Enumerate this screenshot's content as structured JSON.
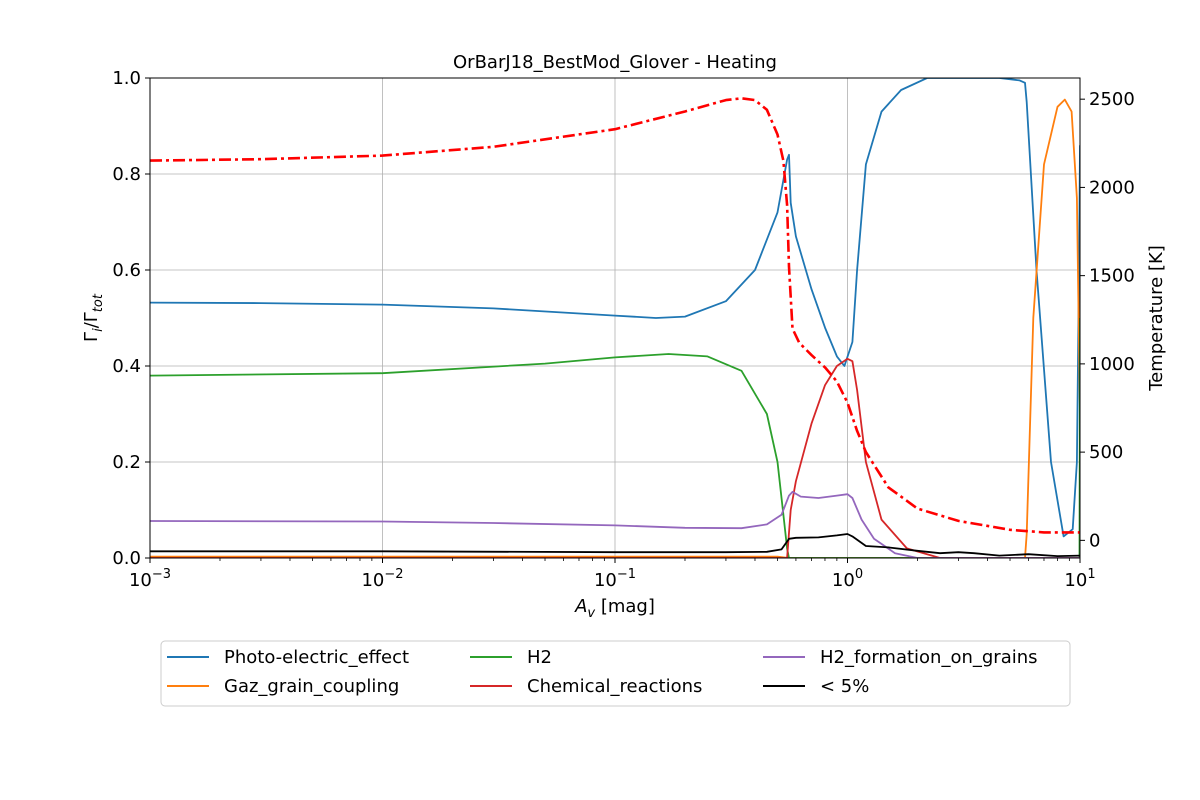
{
  "chart_data": {
    "type": "line",
    "title": "OrBarJ18_BestMod_Glover - Heating",
    "xlabel": "A",
    "xlabel_sub": "v",
    "xlabel_unit": " [mag]",
    "ylabel": "Γ",
    "ylabel_sub1": "i",
    "ylabel_mid": "/Γ",
    "ylabel_sub2": "tot",
    "y2label": "Temperature [K]",
    "xscale": "log",
    "xlim": [
      0.001,
      10
    ],
    "ylim": [
      0,
      1
    ],
    "y2lim": [
      -100,
      2620
    ],
    "grid": true,
    "legend_position": "below",
    "xticks": [
      {
        "value": 0.001,
        "base": "10",
        "exp": "−3"
      },
      {
        "value": 0.01,
        "base": "10",
        "exp": "−2"
      },
      {
        "value": 0.1,
        "base": "10",
        "exp": "−1"
      },
      {
        "value": 1,
        "base": "10",
        "exp": "0"
      },
      {
        "value": 10,
        "base": "10",
        "exp": "1"
      }
    ],
    "yticks": [
      {
        "value": 0.0,
        "label": "0.0"
      },
      {
        "value": 0.2,
        "label": "0.2"
      },
      {
        "value": 0.4,
        "label": "0.4"
      },
      {
        "value": 0.6,
        "label": "0.6"
      },
      {
        "value": 0.8,
        "label": "0.8"
      },
      {
        "value": 1.0,
        "label": "1.0"
      }
    ],
    "y2ticks": [
      {
        "value": 0,
        "label": "0"
      },
      {
        "value": 500,
        "label": "500"
      },
      {
        "value": 1000,
        "label": "1000"
      },
      {
        "value": 1500,
        "label": "1500"
      },
      {
        "value": 2000,
        "label": "2000"
      },
      {
        "value": 2500,
        "label": "2500"
      }
    ],
    "series": [
      {
        "name": "Photo-electric_effect",
        "color": "#1f77b4",
        "points": [
          [
            0.001,
            0.532
          ],
          [
            0.003,
            0.531
          ],
          [
            0.01,
            0.528
          ],
          [
            0.03,
            0.52
          ],
          [
            0.1,
            0.505
          ],
          [
            0.15,
            0.5
          ],
          [
            0.2,
            0.503
          ],
          [
            0.3,
            0.535
          ],
          [
            0.4,
            0.6
          ],
          [
            0.5,
            0.72
          ],
          [
            0.55,
            0.83
          ],
          [
            0.56,
            0.84
          ],
          [
            0.57,
            0.74
          ],
          [
            0.6,
            0.67
          ],
          [
            0.7,
            0.56
          ],
          [
            0.8,
            0.48
          ],
          [
            0.9,
            0.42
          ],
          [
            0.97,
            0.4
          ],
          [
            1.05,
            0.45
          ],
          [
            1.1,
            0.6
          ],
          [
            1.2,
            0.82
          ],
          [
            1.4,
            0.93
          ],
          [
            1.7,
            0.975
          ],
          [
            2.2,
            1.0
          ],
          [
            3,
            1.0
          ],
          [
            4.5,
            1.0
          ],
          [
            5.5,
            0.995
          ],
          [
            5.8,
            0.99
          ],
          [
            5.9,
            0.95
          ],
          [
            6.5,
            0.6
          ],
          [
            7.5,
            0.2
          ],
          [
            8.5,
            0.045
          ],
          [
            9.3,
            0.06
          ],
          [
            9.7,
            0.2
          ],
          [
            9.9,
            0.6
          ],
          [
            10,
            0.86
          ]
        ]
      },
      {
        "name": "Gaz_grain_coupling",
        "color": "#ff7f0e",
        "points": [
          [
            0.001,
            0.003
          ],
          [
            0.5,
            0.003
          ],
          [
            0.56,
            0.0
          ],
          [
            5.8,
            0.0
          ],
          [
            5.9,
            0.05
          ],
          [
            6.3,
            0.5
          ],
          [
            7.0,
            0.82
          ],
          [
            8.0,
            0.94
          ],
          [
            8.6,
            0.955
          ],
          [
            9.2,
            0.93
          ],
          [
            9.7,
            0.75
          ],
          [
            10,
            0.3
          ]
        ]
      },
      {
        "name": "H2",
        "color": "#2ca02c",
        "points": [
          [
            0.001,
            0.38
          ],
          [
            0.01,
            0.385
          ],
          [
            0.05,
            0.405
          ],
          [
            0.1,
            0.418
          ],
          [
            0.17,
            0.425
          ],
          [
            0.25,
            0.42
          ],
          [
            0.35,
            0.39
          ],
          [
            0.45,
            0.3
          ],
          [
            0.5,
            0.2
          ],
          [
            0.53,
            0.09
          ],
          [
            0.55,
            0.02
          ],
          [
            0.56,
            0.0
          ],
          [
            9.95,
            0.0
          ],
          [
            10,
            0.5
          ]
        ]
      },
      {
        "name": "Chemical_reactions",
        "color": "#d62728",
        "points": [
          [
            0.001,
            0.0
          ],
          [
            0.55,
            0.0
          ],
          [
            0.57,
            0.1
          ],
          [
            0.6,
            0.16
          ],
          [
            0.7,
            0.28
          ],
          [
            0.8,
            0.36
          ],
          [
            0.9,
            0.4
          ],
          [
            1.0,
            0.415
          ],
          [
            1.05,
            0.41
          ],
          [
            1.1,
            0.35
          ],
          [
            1.2,
            0.2
          ],
          [
            1.4,
            0.08
          ],
          [
            1.8,
            0.02
          ],
          [
            2.5,
            0.0
          ],
          [
            10,
            0.0
          ]
        ]
      },
      {
        "name": "H2_formation_on_grains",
        "color": "#9467bd",
        "points": [
          [
            0.001,
            0.077
          ],
          [
            0.01,
            0.076
          ],
          [
            0.03,
            0.073
          ],
          [
            0.1,
            0.068
          ],
          [
            0.2,
            0.063
          ],
          [
            0.35,
            0.062
          ],
          [
            0.45,
            0.07
          ],
          [
            0.52,
            0.09
          ],
          [
            0.56,
            0.13
          ],
          [
            0.58,
            0.138
          ],
          [
            0.63,
            0.128
          ],
          [
            0.75,
            0.125
          ],
          [
            0.9,
            0.13
          ],
          [
            1.0,
            0.133
          ],
          [
            1.05,
            0.125
          ],
          [
            1.15,
            0.08
          ],
          [
            1.3,
            0.04
          ],
          [
            1.6,
            0.01
          ],
          [
            2.0,
            0.0
          ],
          [
            10,
            0.0
          ]
        ]
      },
      {
        "name": "< 5%",
        "color": "#000000",
        "points": [
          [
            0.001,
            0.014
          ],
          [
            0.01,
            0.014
          ],
          [
            0.1,
            0.012
          ],
          [
            0.3,
            0.012
          ],
          [
            0.45,
            0.013
          ],
          [
            0.52,
            0.018
          ],
          [
            0.56,
            0.04
          ],
          [
            0.6,
            0.042
          ],
          [
            0.75,
            0.043
          ],
          [
            0.9,
            0.047
          ],
          [
            1.0,
            0.05
          ],
          [
            1.05,
            0.045
          ],
          [
            1.2,
            0.025
          ],
          [
            1.5,
            0.022
          ],
          [
            2.0,
            0.015
          ],
          [
            2.5,
            0.01
          ],
          [
            3.0,
            0.012
          ],
          [
            3.5,
            0.01
          ],
          [
            4.5,
            0.005
          ],
          [
            6.0,
            0.008
          ],
          [
            8.0,
            0.004
          ],
          [
            10,
            0.005
          ]
        ]
      }
    ],
    "temperature": {
      "color": "#ff0000",
      "style": "dash-dot",
      "points": [
        [
          0.001,
          2152
        ],
        [
          0.003,
          2160
        ],
        [
          0.01,
          2180
        ],
        [
          0.03,
          2230
        ],
        [
          0.1,
          2330
        ],
        [
          0.2,
          2430
        ],
        [
          0.3,
          2495
        ],
        [
          0.35,
          2505
        ],
        [
          0.4,
          2495
        ],
        [
          0.45,
          2440
        ],
        [
          0.5,
          2300
        ],
        [
          0.53,
          2150
        ],
        [
          0.55,
          1900
        ],
        [
          0.56,
          1550
        ],
        [
          0.58,
          1200
        ],
        [
          0.62,
          1120
        ],
        [
          0.7,
          1050
        ],
        [
          0.8,
          980
        ],
        [
          0.9,
          900
        ],
        [
          1.0,
          780
        ],
        [
          1.1,
          620
        ],
        [
          1.2,
          500
        ],
        [
          1.5,
          300
        ],
        [
          2.0,
          180
        ],
        [
          3.0,
          110
        ],
        [
          5.0,
          60
        ],
        [
          7.0,
          45
        ],
        [
          10,
          45
        ]
      ]
    }
  }
}
